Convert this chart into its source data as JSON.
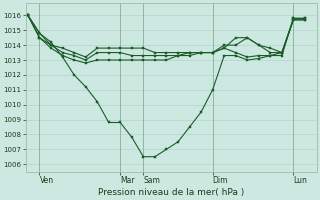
{
  "background_color": "#cde8e0",
  "grid_color": "#b0d4c8",
  "line_color": "#1a5c28",
  "ylim": [
    1005.5,
    1016.8
  ],
  "yticks": [
    1006,
    1007,
    1008,
    1009,
    1010,
    1011,
    1012,
    1013,
    1014,
    1015,
    1016
  ],
  "xlabel": "Pression niveau de la mer( hPa )",
  "xtick_labels": [
    "Ven",
    "Mar",
    "Sam",
    "Dim",
    "Lun"
  ],
  "xtick_positions": [
    0.5,
    4.0,
    5.0,
    8.0,
    11.5
  ],
  "xlim": [
    -0.1,
    12.5
  ],
  "line1_x": [
    0.0,
    0.5,
    1.0,
    1.5,
    2.0,
    2.5,
    3.0,
    3.5,
    4.0,
    4.5,
    5.0,
    5.5,
    6.0,
    6.5,
    7.0,
    7.5,
    8.0,
    8.5,
    9.0,
    9.5,
    10.0,
    10.5,
    11.0,
    11.5,
    12.0
  ],
  "line1_y": [
    1016.0,
    1014.8,
    1014.2,
    1013.2,
    1012.0,
    1011.2,
    1010.2,
    1008.8,
    1008.8,
    1007.8,
    1006.5,
    1006.5,
    1007.0,
    1007.5,
    1008.5,
    1009.5,
    1011.0,
    1013.3,
    1013.3,
    1013.0,
    1013.1,
    1013.3,
    1013.3,
    1015.8,
    1015.8
  ],
  "line2_x": [
    0.0,
    0.5,
    1.0,
    1.5,
    2.0,
    2.5,
    3.0,
    3.5,
    4.0,
    4.5,
    5.0,
    5.5,
    6.0,
    6.5,
    7.0,
    7.5,
    8.0,
    8.5,
    9.0,
    9.5,
    10.0,
    10.5,
    11.0,
    11.5,
    12.0
  ],
  "line2_y": [
    1016.0,
    1014.8,
    1014.0,
    1013.8,
    1013.5,
    1013.2,
    1013.8,
    1013.8,
    1013.8,
    1013.8,
    1013.8,
    1013.5,
    1013.5,
    1013.5,
    1013.5,
    1013.5,
    1013.5,
    1013.8,
    1014.5,
    1014.5,
    1014.0,
    1013.8,
    1013.5,
    1015.8,
    1015.8
  ],
  "line3_x": [
    0.0,
    0.5,
    1.0,
    1.5,
    2.0,
    2.5,
    3.0,
    3.5,
    4.0,
    4.5,
    5.0,
    5.5,
    6.0,
    6.5,
    7.0,
    7.5,
    8.0,
    8.5,
    9.0,
    9.5,
    10.0,
    10.5,
    11.0,
    11.5,
    12.0
  ],
  "line3_y": [
    1016.0,
    1014.5,
    1014.0,
    1013.5,
    1013.3,
    1013.0,
    1013.5,
    1013.5,
    1013.5,
    1013.3,
    1013.3,
    1013.3,
    1013.3,
    1013.3,
    1013.3,
    1013.5,
    1013.5,
    1014.0,
    1014.0,
    1014.5,
    1014.0,
    1013.5,
    1013.5,
    1015.7,
    1015.7
  ],
  "line4_x": [
    0.0,
    0.5,
    1.0,
    1.5,
    2.0,
    2.5,
    3.0,
    3.5,
    4.0,
    4.5,
    5.0,
    5.5,
    6.0,
    6.5,
    7.0,
    7.5,
    8.0,
    8.5,
    9.0,
    9.5,
    10.0,
    10.5,
    11.0,
    11.5,
    12.0
  ],
  "line4_y": [
    1016.0,
    1014.5,
    1013.8,
    1013.3,
    1013.0,
    1012.8,
    1013.0,
    1013.0,
    1013.0,
    1013.0,
    1013.0,
    1013.0,
    1013.0,
    1013.3,
    1013.5,
    1013.5,
    1013.5,
    1013.8,
    1013.5,
    1013.2,
    1013.3,
    1013.3,
    1013.5,
    1015.7,
    1015.7
  ]
}
